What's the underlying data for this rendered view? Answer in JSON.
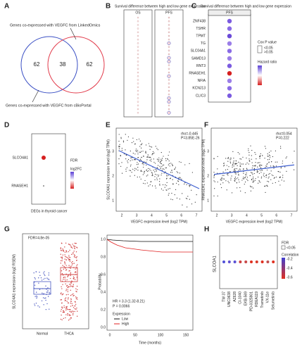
{
  "panels": {
    "A": {
      "label": "A",
      "top_text": "Genes co-expressed with VEGFC from LinkedOmics",
      "bottom_text": "Genes co-expressed with VEGFC from cBioPortal",
      "left": "62",
      "middle": "38",
      "right": "62"
    },
    "B": {
      "label": "B",
      "title": "Survival difference between high and low gene expression",
      "left_header": "OS",
      "right_header": "PFS"
    },
    "C": {
      "label": "C",
      "title": "Survival difference between high and low gene expression",
      "header": "PFS",
      "genes": [
        "ZNF438",
        "TSHR",
        "TPMT",
        "TG",
        "SLC04A1",
        "SAMD13",
        "RNT3",
        "RNASEH1",
        "NFIA",
        "KCNJ13",
        "CLIC3"
      ],
      "legend_title": "Cox P value",
      "legend_items": [
        "<0.05",
        ">0.05"
      ],
      "legend_title2": "Hazard ratio"
    },
    "D": {
      "label": "D",
      "genes": [
        "SLCO4A1",
        "RNASEH1"
      ],
      "xlabel": "DEGs in thyroid cancer",
      "legend_title": "FDR",
      "legend_title2": "log2FC"
    },
    "E": {
      "label": "E",
      "stats": [
        "rho=-0.445",
        "P=3.85E-26"
      ],
      "ylabel": "SLCO4A1 expression level (log2 TPM)",
      "xlabel": "VEGFC expression level (log2 TPM)",
      "xticks": [
        "2",
        "3",
        "4",
        "5",
        "6",
        "7"
      ],
      "yticks": [
        "1",
        "2",
        "3"
      ]
    },
    "F": {
      "label": "F",
      "stats": [
        "rho=0.054",
        "P=0.222"
      ],
      "ylabel": "RNASEH1 expression level (log2 TPM)",
      "xlabel": "VEGFC expression level (log2 TPM)",
      "xticks": [
        "2",
        "3",
        "4",
        "5",
        "6",
        "7"
      ],
      "yticks": [
        "1",
        "2",
        "3"
      ]
    },
    "G": {
      "label": "G",
      "fdr": "FDR=4.8e-05",
      "ylabel": "SLCO4A1 expression (log2 RSEM)",
      "groups": [
        "Normal",
        "THCA"
      ],
      "km_ylabel": "Probability",
      "km_xlabel": "Time (months)",
      "km_xticks": [
        "0",
        "50",
        "100",
        "150"
      ],
      "km_yticks": [
        "0.0",
        "0.2",
        "0.4",
        "0.6",
        "0.8",
        "1.0"
      ],
      "hr": "HR = 3.3 (1.32-8.21)",
      "p": "P = 0.0066",
      "legend_title": "Expression",
      "legend_items": [
        "Low",
        "High"
      ]
    },
    "H": {
      "label": "H",
      "gene": "SLCOA1",
      "drugs": [
        "TW 37",
        "UNC0638",
        "AZ628",
        "CI-1040",
        "EKB-569",
        "PD-0325901",
        "RDEA119",
        "Trametinib",
        "VX-11e",
        "Selumetinib"
      ],
      "legend_title": "FDR",
      "legend_item": "<0.05",
      "legend_title2": "Correlation",
      "legend_values": [
        "-0.2",
        "-0.4",
        "-0.6"
      ]
    }
  }
}
